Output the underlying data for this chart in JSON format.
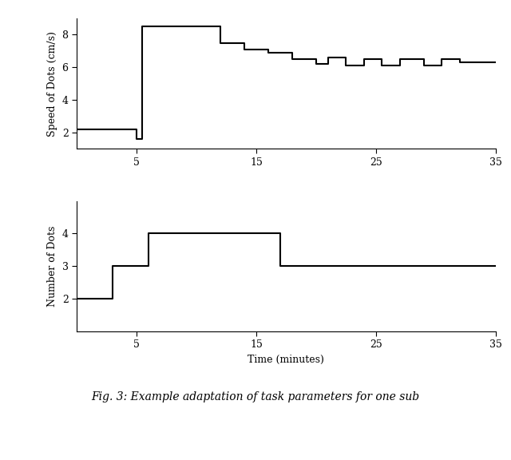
{
  "speed_x": [
    0,
    5,
    5,
    5.5,
    5.5,
    9,
    9,
    12,
    12,
    14,
    14,
    16,
    16,
    18,
    18,
    20,
    20,
    21,
    21,
    22.5,
    22.5,
    24,
    24,
    25.5,
    25.5,
    27,
    27,
    29,
    29,
    30.5,
    30.5,
    32,
    32,
    35
  ],
  "speed_y": [
    2.2,
    2.2,
    1.6,
    1.6,
    8.5,
    8.5,
    8.5,
    8.5,
    7.5,
    7.5,
    7.1,
    7.1,
    6.9,
    6.9,
    6.5,
    6.5,
    6.2,
    6.2,
    6.6,
    6.6,
    6.1,
    6.1,
    6.5,
    6.5,
    6.1,
    6.1,
    6.5,
    6.5,
    6.1,
    6.1,
    6.5,
    6.5,
    6.3,
    6.3
  ],
  "dots_x": [
    0,
    3,
    3,
    6,
    6,
    17,
    17,
    35
  ],
  "dots_y": [
    2,
    2,
    3,
    3,
    4,
    4,
    3,
    3
  ],
  "xlim": [
    0,
    35
  ],
  "xticks": [
    5,
    15,
    25,
    35
  ],
  "speed_ylim": [
    1,
    9
  ],
  "speed_yticks": [
    2,
    4,
    6,
    8
  ],
  "dots_ylim": [
    1,
    5
  ],
  "dots_yticks": [
    2,
    3,
    4
  ],
  "xlabel": "Time (minutes)",
  "ylabel_speed": "Speed of Dots (cm/s)",
  "ylabel_dots": "Number of Dots",
  "caption": "Fig. 3: Example adaptation of task parameters for one sub",
  "line_color": "#000000",
  "bg_color": "#ffffff",
  "linewidth": 1.5
}
